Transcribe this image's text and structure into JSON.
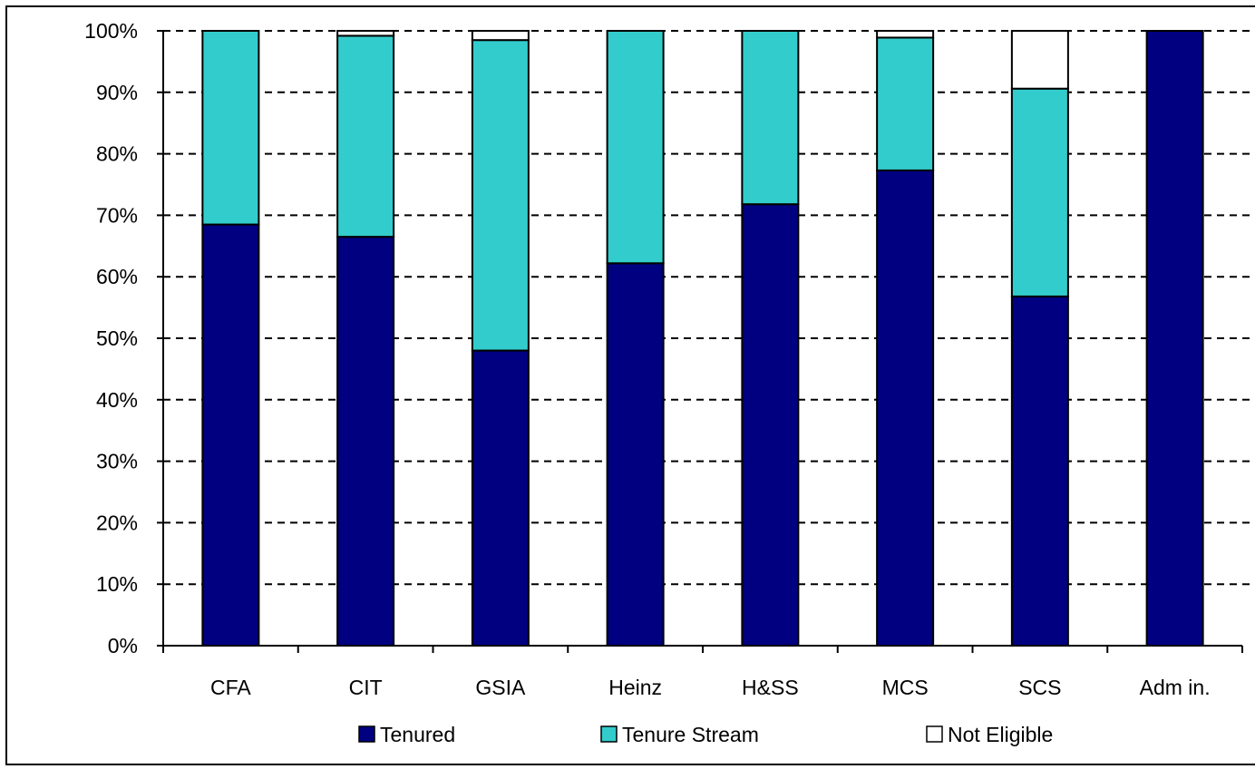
{
  "chart_data": {
    "type": "bar",
    "stacked": true,
    "percent_axis": true,
    "categories": [
      "CFA",
      "CIT",
      "GSIA",
      "Heinz",
      "H&SS",
      "MCS",
      "SCS",
      "Adm in."
    ],
    "series": [
      {
        "name": "Tenured",
        "color": "#000080",
        "values": [
          68.5,
          66.5,
          48.0,
          62.2,
          71.8,
          77.3,
          56.8,
          100.0
        ]
      },
      {
        "name": "Tenure Stream",
        "color": "#33cccc",
        "values": [
          31.5,
          32.7,
          50.5,
          37.8,
          28.2,
          21.6,
          33.8,
          0.0
        ]
      },
      {
        "name": "Not Eligible",
        "color": "#ffffff",
        "values": [
          0.0,
          0.8,
          1.5,
          0.0,
          0.0,
          1.1,
          9.4,
          0.0
        ]
      }
    ],
    "ylim": [
      0,
      100
    ],
    "yticks": [
      "0%",
      "10%",
      "20%",
      "30%",
      "40%",
      "50%",
      "60%",
      "70%",
      "80%",
      "90%",
      "100%"
    ],
    "grid": "dashed horizontal",
    "legend_position": "bottom",
    "title": "",
    "xlabel": "",
    "ylabel": ""
  }
}
